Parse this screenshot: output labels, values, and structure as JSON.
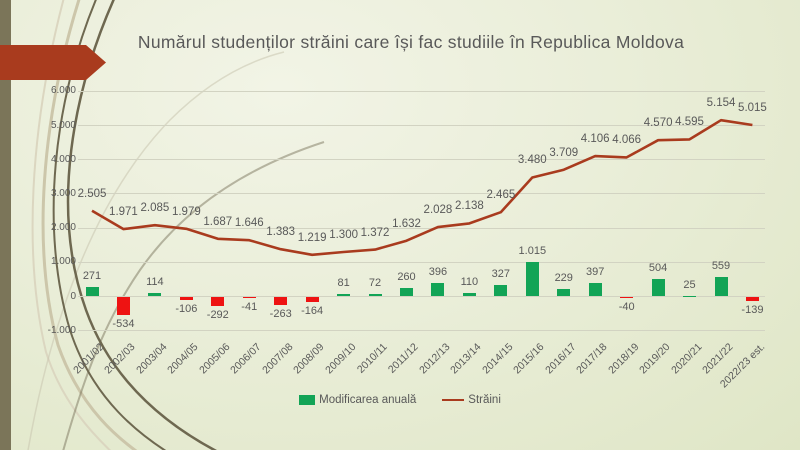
{
  "slide": {
    "title": "Numărul studenților străini care își fac studiile în Republica Moldova"
  },
  "colors": {
    "accent_red": "#a93b1e",
    "bar_positive_green": "#12a456",
    "bar_negative_red": "#ee1312",
    "line_red": "#a93b1e",
    "text_gray": "#595959",
    "side_band_olive": "#7b7559",
    "gridline": "#d2d3c2"
  },
  "chart_data": {
    "type": "combo",
    "title": "Numărul studenților străini care își fac studiile în Republica Moldova",
    "categories": [
      "2001/02",
      "2002/03",
      "2003/04",
      "2004/05",
      "2005/06",
      "2006/07",
      "2007/08",
      "2008/09",
      "2009/10",
      "2010/11",
      "2011/12",
      "2012/13",
      "2013/14",
      "2014/15",
      "2015/16",
      "2016/17",
      "2017/18",
      "2018/19",
      "2019/20",
      "2020/21",
      "2021/22",
      "2022/23 est."
    ],
    "series": [
      {
        "name": "Modificarea anuală",
        "type": "bar",
        "values": [
          271,
          -534,
          114,
          -106,
          -292,
          -41,
          -263,
          -164,
          81,
          72,
          260,
          396,
          110,
          327,
          1015,
          229,
          397,
          -40,
          504,
          25,
          559,
          -139
        ],
        "labels": [
          "271",
          "-534",
          "114",
          "-106",
          "-292",
          "-41",
          "-263",
          "-164",
          "81",
          "72",
          "260",
          "396",
          "110",
          "327",
          "1.015",
          "229",
          "397",
          "-40",
          "504",
          "25",
          "559",
          "-139"
        ]
      },
      {
        "name": "Străini",
        "type": "line",
        "values": [
          2505,
          1971,
          2085,
          1979,
          1687,
          1646,
          1383,
          1219,
          1300,
          1372,
          1632,
          2028,
          2138,
          2465,
          3480,
          3709,
          4106,
          4066,
          4570,
          4595,
          5154,
          5015
        ],
        "labels": [
          "2.505",
          "1.971",
          "2.085",
          "1.979",
          "1.687",
          "1.646",
          "1.383",
          "1.219",
          "1.300",
          "1.372",
          "1.632",
          "2.028",
          "2.138",
          "2.465",
          "3.480",
          "3.709",
          "4.106",
          "4.066",
          "4.570",
          "4.595",
          "5.154",
          "5.015"
        ]
      }
    ],
    "y_axis": {
      "min": -1000,
      "max": 6000,
      "ticks": [
        {
          "value": 6000,
          "label": "6.000"
        },
        {
          "value": 5000,
          "label": "5.000"
        },
        {
          "value": 4000,
          "label": "4.000"
        },
        {
          "value": 3000,
          "label": "3.000"
        },
        {
          "value": 2000,
          "label": "2.000"
        },
        {
          "value": 1000,
          "label": "1.000"
        },
        {
          "value": 0,
          "label": "0"
        },
        {
          "value": -1000,
          "label": "-1.000"
        }
      ]
    },
    "grid": true,
    "legend_position": "bottom"
  }
}
